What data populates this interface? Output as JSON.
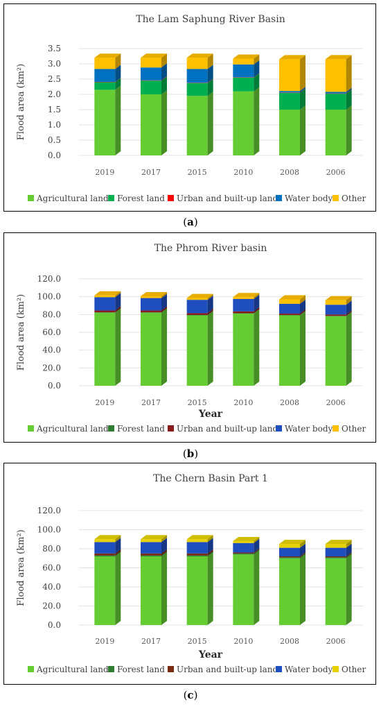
{
  "captions": [
    {
      "open": "(",
      "letter": "a",
      "close": ")"
    },
    {
      "open": "(",
      "letter": "b",
      "close": ")"
    },
    {
      "open": "(",
      "letter": "c",
      "close": ")"
    }
  ],
  "chart_data": [
    {
      "type": "bar",
      "stacked": true,
      "title": "The Lam Saphung River Basin",
      "xlabel": "",
      "ylabel": "Flood area (km²)",
      "ylim": [
        0,
        3.5
      ],
      "yticks": [
        "0.0",
        "0.5",
        "1.0",
        "1.5",
        "2.0",
        "2.5",
        "3.0",
        "3.5"
      ],
      "grid": true,
      "legend": "bottom",
      "categories": [
        "2019",
        "2017",
        "2015",
        "2010",
        "2008",
        "2006"
      ],
      "series": [
        {
          "name": "Agricultural land",
          "color": "#66cc33",
          "values": [
            2.15,
            2.0,
            1.95,
            2.1,
            1.5,
            1.5
          ]
        },
        {
          "name": "Forest land",
          "color": "#00b050",
          "values": [
            0.25,
            0.45,
            0.42,
            0.45,
            0.55,
            0.52
          ]
        },
        {
          "name": "Urban and built-up land",
          "color": "#ff0000",
          "values": [
            0.01,
            0.01,
            0.01,
            0.01,
            0.01,
            0.01
          ]
        },
        {
          "name": "Water body",
          "color": "#0070c0",
          "values": [
            0.42,
            0.42,
            0.45,
            0.42,
            0.05,
            0.05
          ]
        },
        {
          "name": "Other",
          "color": "#ffc000",
          "values": [
            0.37,
            0.32,
            0.37,
            0.19,
            1.04,
            1.07
          ]
        }
      ]
    },
    {
      "type": "bar",
      "stacked": true,
      "title": "The Phrom River basin",
      "xlabel": "Year",
      "ylabel": "Flood area (km²)",
      "ylim": [
        0,
        120
      ],
      "yticks": [
        "0.0",
        "20.0",
        "40.0",
        "60.0",
        "80.0",
        "100.0",
        "120.0"
      ],
      "grid": true,
      "legend": "bottom",
      "categories": [
        "2019",
        "2017",
        "2015",
        "2010",
        "2008",
        "2006"
      ],
      "series": [
        {
          "name": "Agricultural land",
          "color": "#66cc33",
          "values": [
            82,
            82,
            79,
            81,
            79,
            78
          ]
        },
        {
          "name": "Forest land",
          "color": "#2e7d32",
          "values": [
            0.5,
            0.5,
            0.5,
            0.5,
            0.5,
            0.5
          ]
        },
        {
          "name": "Urban and built-up land",
          "color": "#8b1a1a",
          "values": [
            2,
            2,
            2,
            2,
            1.5,
            1.5
          ]
        },
        {
          "name": "Water body",
          "color": "#1f4fbf",
          "values": [
            15,
            14,
            15,
            14,
            11,
            11
          ]
        },
        {
          "name": "Other",
          "color": "#ffc000",
          "values": [
            2,
            2,
            2,
            2,
            5,
            5
          ]
        }
      ]
    },
    {
      "type": "bar",
      "stacked": true,
      "title": "The Chern Basin Part 1",
      "xlabel": "Year",
      "ylabel": "Flood area (km²)",
      "ylim": [
        0,
        120
      ],
      "yticks": [
        "0.0",
        "20.0",
        "40.0",
        "60.0",
        "80.0",
        "100.0",
        "120.0"
      ],
      "grid": true,
      "legend": "bottom",
      "categories": [
        "2019",
        "2017",
        "2015",
        "2010",
        "2008",
        "2006"
      ],
      "series": [
        {
          "name": "Agricultural land",
          "color": "#66cc33",
          "values": [
            72,
            72,
            72,
            74,
            70,
            70
          ]
        },
        {
          "name": "Forest land",
          "color": "#2e7d32",
          "values": [
            1,
            1,
            1,
            1,
            1,
            1
          ]
        },
        {
          "name": "Urban and built-up land",
          "color": "#7a2a10",
          "values": [
            2,
            2,
            2,
            1,
            1,
            1
          ]
        },
        {
          "name": "Water body",
          "color": "#1f4fbf",
          "values": [
            12,
            12,
            12,
            10,
            9,
            9
          ]
        },
        {
          "name": "Other",
          "color": "#e6d200",
          "values": [
            3,
            3,
            3,
            2,
            4,
            4
          ]
        }
      ]
    }
  ]
}
